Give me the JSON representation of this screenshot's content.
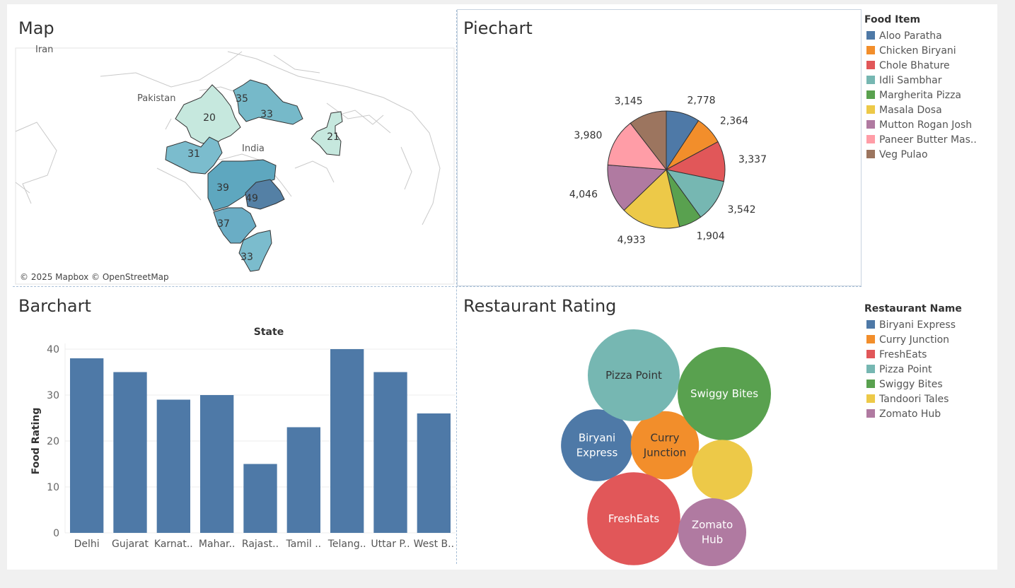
{
  "map": {
    "title": "Map",
    "attribution": "© 2025 Mapbox © OpenStreetMap",
    "place_labels": {
      "pakistan": "Pakistan",
      "india": "India",
      "iran": "Iran"
    },
    "values": {
      "rajasthan": "20",
      "uttar_pradesh": "33",
      "delhi": "35",
      "west_bengal": "21",
      "gujarat": "31",
      "maharashtra": "39",
      "telangana": "49",
      "karnataka": "37",
      "tamil_nadu": "33"
    }
  },
  "pie": {
    "title": "Piechart",
    "legend_title": "Food Item"
  },
  "bar": {
    "title": "Barchart"
  },
  "bubble": {
    "title": "Restaurant Rating",
    "legend_title": "Restaurant Name"
  },
  "chart_data": [
    {
      "type": "pie",
      "title": "Piechart",
      "legend_title": "Food Item",
      "categories": [
        "Aloo Paratha",
        "Chicken Biryani",
        "Chole Bhature",
        "Idli Sambhar",
        "Margherita Pizza",
        "Masala Dosa",
        "Mutton Rogan Josh",
        "Paneer Butter Mas..",
        "Veg Pulao"
      ],
      "values": [
        2778,
        2364,
        3337,
        3542,
        1904,
        4933,
        4046,
        3980,
        3145
      ],
      "value_labels": [
        "2,778",
        "2,364",
        "3,337",
        "3,542",
        "1,904",
        "4,933",
        "4,046",
        "3,980",
        "3,145"
      ],
      "colors": [
        "#4e79a7",
        "#f28e2b",
        "#e15759",
        "#76b7b2",
        "#59a14f",
        "#edc948",
        "#b07aa1",
        "#ff9da7",
        "#9c755f"
      ]
    },
    {
      "type": "bar",
      "title": "Barchart",
      "top_label": "State",
      "xlabel": "",
      "ylabel": "Food Rating",
      "categories": [
        "Delhi",
        "Gujarat",
        "Karnat..",
        "Mahar..",
        "Rajast..",
        "Tamil ..",
        "Telang..",
        "Uttar P..",
        "West B.."
      ],
      "values": [
        38,
        35,
        29,
        30,
        15,
        23,
        40,
        35,
        26
      ],
      "ylim": [
        0,
        40
      ],
      "yticks": [
        "0",
        "10",
        "20",
        "30",
        "40"
      ],
      "color": "#4e79a7",
      "grid": true
    },
    {
      "type": "bubble",
      "title": "Restaurant Rating",
      "legend_title": "Restaurant Name",
      "categories": [
        "Biryani Express",
        "Curry Junction",
        "FreshEats",
        "Pizza Point",
        "Swiggy Bites",
        "Tandoori Tales",
        "Zomato Hub"
      ],
      "bubble_labels": [
        [
          "Biryani",
          "Express"
        ],
        [
          "Curry",
          "Junction"
        ],
        [
          "FreshEats"
        ],
        [
          "Pizza Point"
        ],
        [
          "Swiggy Bites"
        ],
        [],
        [
          "Zomato",
          "Hub"
        ]
      ],
      "values": [
        101,
        91,
        169,
        165,
        170,
        71,
        90
      ],
      "colors": [
        "#4e79a7",
        "#f28e2b",
        "#e15759",
        "#76b7b2",
        "#59a14f",
        "#edc948",
        "#b07aa1"
      ]
    }
  ]
}
